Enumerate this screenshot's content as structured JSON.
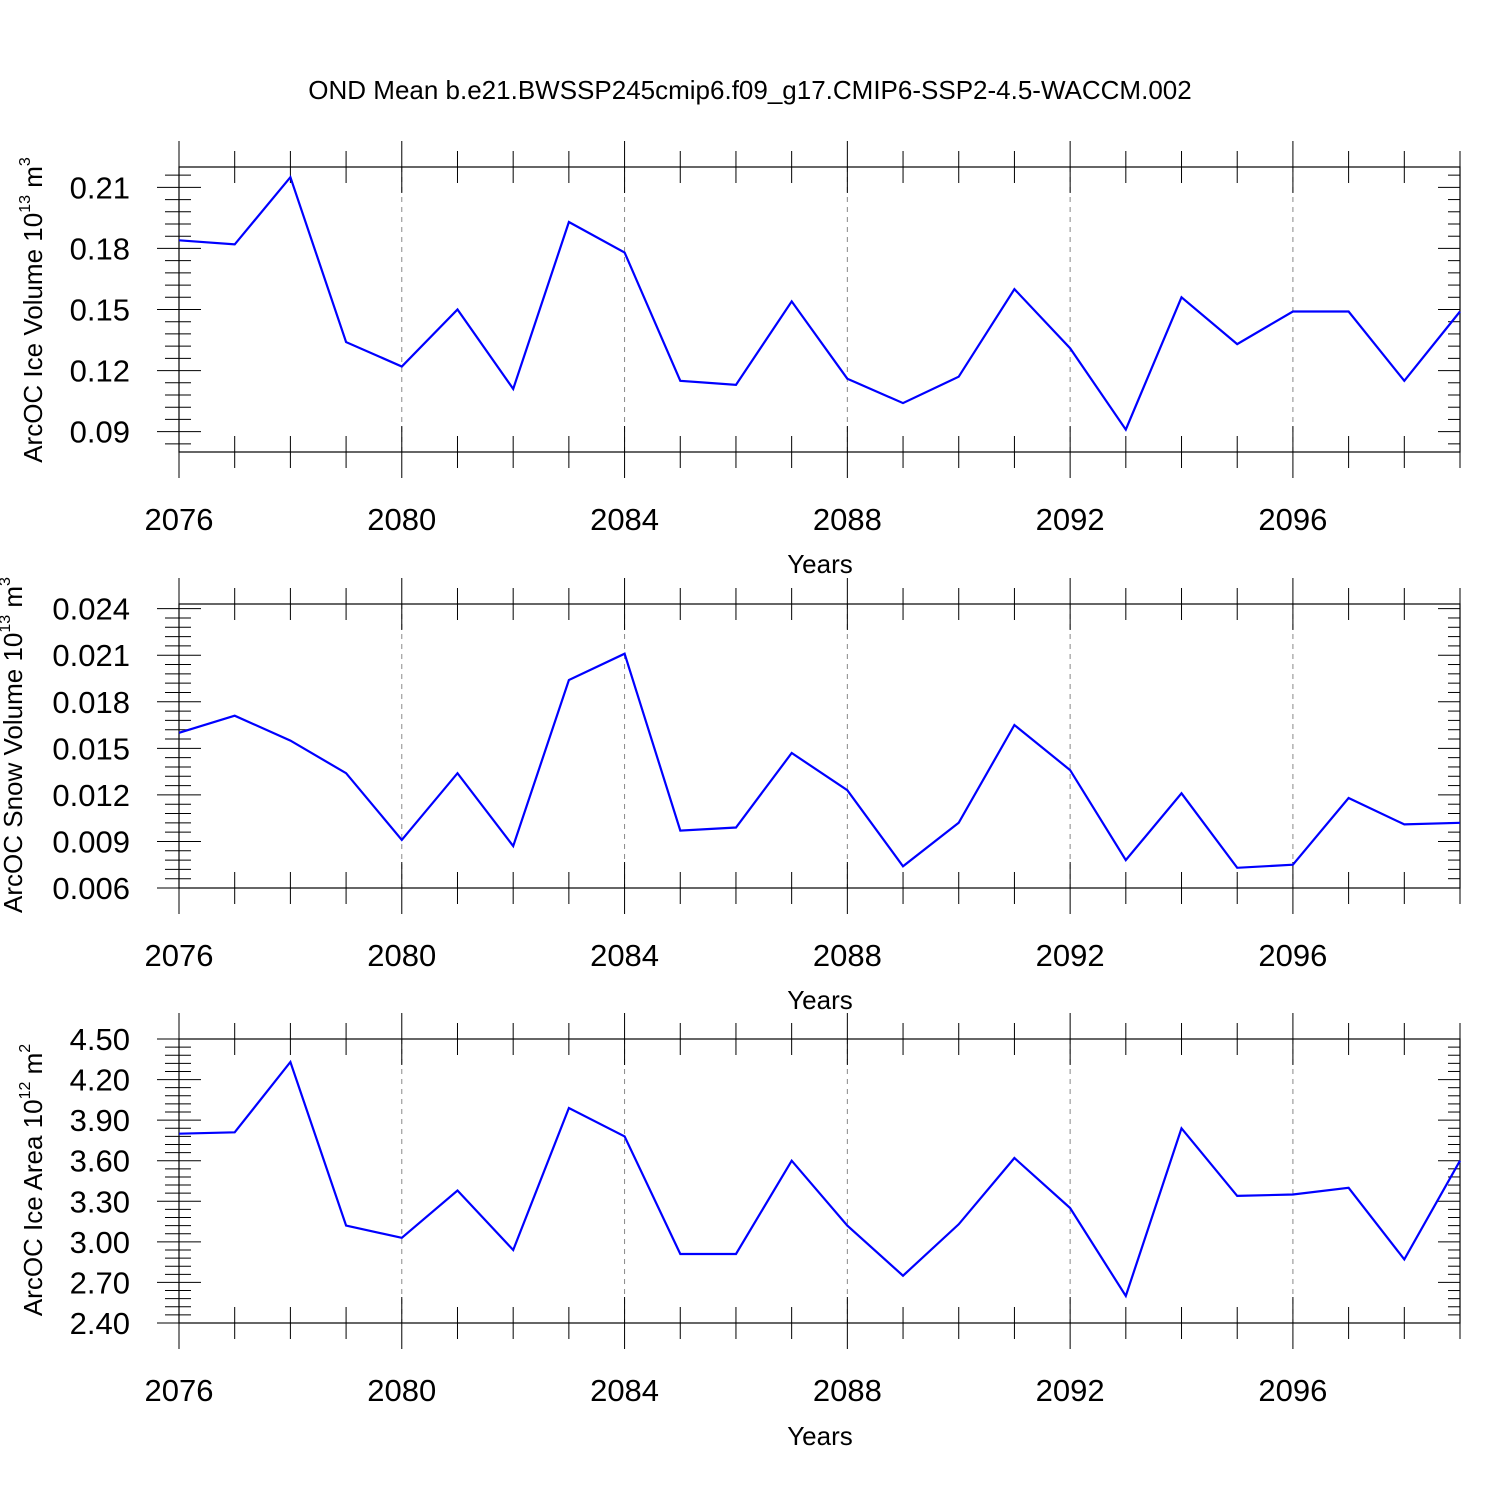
{
  "title": "OND Mean b.e21.BWSSP245cmip6.f09_g17.CMIP6-SSP2-4.5-WACCM.002",
  "colors": {
    "line": "#0000ff",
    "axes": "#000000",
    "grid": "#888888"
  },
  "chart_data": [
    {
      "type": "line",
      "ylabel": {
        "main": "ArcOC Ice Volume 10",
        "exp": "13",
        "unit": " m",
        "unit_exp": "3"
      },
      "xlabel": "Years",
      "xlim": [
        2076,
        2099
      ],
      "xticks": [
        2076,
        2080,
        2084,
        2088,
        2092,
        2096
      ],
      "ylim": [
        0.08,
        0.22
      ],
      "yticks": [
        "0.09",
        "0.12",
        "0.15",
        "0.18",
        "0.21"
      ],
      "grid": "x dashed",
      "x": [
        2076,
        2077,
        2078,
        2079,
        2080,
        2081,
        2082,
        2083,
        2084,
        2085,
        2086,
        2087,
        2088,
        2089,
        2090,
        2091,
        2092,
        2093,
        2094,
        2095,
        2096,
        2097,
        2098,
        2099
      ],
      "values": [
        0.184,
        0.182,
        0.215,
        0.134,
        0.122,
        0.15,
        0.111,
        0.193,
        0.178,
        0.115,
        0.113,
        0.154,
        0.116,
        0.104,
        0.117,
        0.16,
        0.131,
        0.091,
        0.156,
        0.133,
        0.149,
        0.149,
        0.115,
        0.149
      ]
    },
    {
      "type": "line",
      "ylabel": {
        "main": "ArcOC Snow Volume 10",
        "exp": "13",
        "unit": " m",
        "unit_exp": "3"
      },
      "xlabel": "Years",
      "xlim": [
        2076,
        2099
      ],
      "xticks": [
        2076,
        2080,
        2084,
        2088,
        2092,
        2096
      ],
      "ylim": [
        0.006,
        0.0243
      ],
      "yticks": [
        "0.006",
        "0.009",
        "0.012",
        "0.015",
        "0.018",
        "0.021",
        "0.024"
      ],
      "grid": "x dashed",
      "x": [
        2076,
        2077,
        2078,
        2079,
        2080,
        2081,
        2082,
        2083,
        2084,
        2085,
        2086,
        2087,
        2088,
        2089,
        2090,
        2091,
        2092,
        2093,
        2094,
        2095,
        2096,
        2097,
        2098,
        2099
      ],
      "values": [
        0.016,
        0.0171,
        0.0155,
        0.0134,
        0.0091,
        0.0134,
        0.0087,
        0.0194,
        0.0211,
        0.0097,
        0.0099,
        0.0147,
        0.0123,
        0.0074,
        0.0102,
        0.0165,
        0.0136,
        0.0078,
        0.0121,
        0.0073,
        0.0075,
        0.0118,
        0.0101,
        0.0102
      ]
    },
    {
      "type": "line",
      "ylabel": {
        "main": "ArcOC Ice Area 10",
        "exp": "12",
        "unit": " m",
        "unit_exp": "2"
      },
      "xlabel": "Years",
      "xlim": [
        2076,
        2099
      ],
      "xticks": [
        2076,
        2080,
        2084,
        2088,
        2092,
        2096
      ],
      "ylim": [
        2.4,
        4.5
      ],
      "yticks": [
        "2.40",
        "2.70",
        "3.00",
        "3.30",
        "3.60",
        "3.90",
        "4.20",
        "4.50"
      ],
      "grid": "x dashed",
      "x": [
        2076,
        2077,
        2078,
        2079,
        2080,
        2081,
        2082,
        2083,
        2084,
        2085,
        2086,
        2087,
        2088,
        2089,
        2090,
        2091,
        2092,
        2093,
        2094,
        2095,
        2096,
        2097,
        2098,
        2099
      ],
      "values": [
        3.8,
        3.81,
        4.33,
        3.12,
        3.03,
        3.38,
        2.94,
        3.99,
        3.78,
        2.91,
        2.91,
        3.6,
        3.12,
        2.75,
        3.13,
        3.62,
        3.25,
        2.6,
        3.84,
        3.34,
        3.35,
        3.4,
        2.87,
        3.6
      ]
    }
  ]
}
